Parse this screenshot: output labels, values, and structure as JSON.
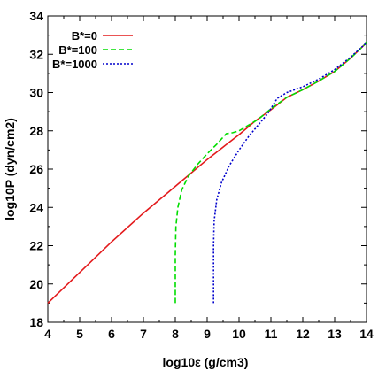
{
  "chart_data": {
    "type": "line",
    "xlabel": "log10ε (g/cm3)",
    "ylabel": "log10P (dyn/cm2)",
    "xlim": [
      4,
      14
    ],
    "ylim": [
      18,
      34
    ],
    "xticks": [
      4,
      5,
      6,
      7,
      8,
      9,
      10,
      11,
      12,
      13,
      14
    ],
    "yticks": [
      18,
      20,
      22,
      24,
      26,
      28,
      30,
      32,
      34
    ],
    "grid": false,
    "legend_position": "top-left",
    "series": [
      {
        "name": "B*=0",
        "color": "#e31a1c",
        "style": "solid",
        "x": [
          4.0,
          5.0,
          6.0,
          7.0,
          8.0,
          9.0,
          9.5,
          10.0,
          10.5,
          11.0,
          11.5,
          12.0,
          12.5,
          13.0,
          13.5,
          14.0
        ],
        "y": [
          19.0,
          20.6,
          22.2,
          23.7,
          25.1,
          26.5,
          27.15,
          27.8,
          28.5,
          29.1,
          29.75,
          30.15,
          30.6,
          31.1,
          31.8,
          32.6
        ]
      },
      {
        "name": "B*=100",
        "color": "#00dd00",
        "style": "dashed",
        "x": [
          8.0,
          8.0,
          8.02,
          8.08,
          8.2,
          8.4,
          8.7,
          9.0,
          9.3,
          9.6,
          9.8,
          10.0,
          10.3,
          10.6,
          11.0,
          11.5,
          12.0,
          12.5,
          13.0,
          13.5,
          14.0
        ],
        "y": [
          19.0,
          21.5,
          23.0,
          24.0,
          24.9,
          25.6,
          26.25,
          26.8,
          27.3,
          27.85,
          27.9,
          28.0,
          28.3,
          28.6,
          29.15,
          29.75,
          30.15,
          30.6,
          31.1,
          31.8,
          32.6
        ]
      },
      {
        "name": "B*=1000",
        "color": "#0000cc",
        "style": "dotted",
        "x": [
          9.2,
          9.2,
          9.22,
          9.3,
          9.45,
          9.7,
          10.0,
          10.3,
          10.6,
          10.9,
          11.2,
          11.5,
          12.0,
          12.5,
          13.0,
          13.5,
          14.0
        ],
        "y": [
          19.0,
          22.0,
          23.3,
          24.4,
          25.3,
          26.2,
          27.0,
          27.7,
          28.3,
          28.9,
          29.7,
          30.0,
          30.3,
          30.7,
          31.2,
          31.85,
          32.6
        ]
      }
    ]
  }
}
